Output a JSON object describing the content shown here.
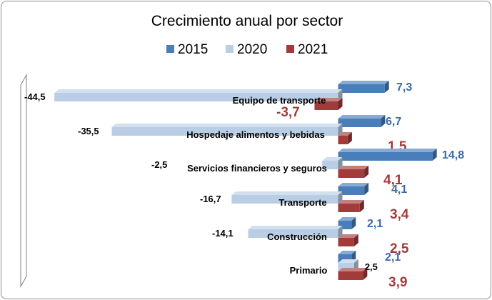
{
  "chart_data": {
    "type": "bar",
    "orientation": "horizontal",
    "title": "Crecimiento anual por sector",
    "categories": [
      "Equipo de transporte",
      "Hospedaje alimentos y bebidas",
      "Servicios financieros y seguros",
      "Transporte",
      "Construcción",
      "Primario"
    ],
    "series": [
      {
        "name": "2015",
        "color": "#4a7ebb",
        "values": [
          7.3,
          6.7,
          14.8,
          4.1,
          2.1,
          2.1
        ]
      },
      {
        "name": "2020",
        "color": "#b9cde5",
        "values": [
          -44.5,
          -35.5,
          -2.5,
          -16.7,
          -14.1,
          2.5
        ]
      },
      {
        "name": "2021",
        "color": "#a33b3b",
        "values": [
          -3.7,
          1.5,
          4.1,
          3.4,
          2.5,
          3.9
        ]
      }
    ],
    "data_labels": {
      "2015": [
        "7,3",
        "6,7",
        "14,8",
        "4,1",
        "2,1",
        "2,1"
      ],
      "2020": [
        "-44,5",
        "-35,5",
        "-2,5",
        "-16,7",
        "-14,1",
        "2,5"
      ],
      "2021": [
        "-3,7",
        "1,5",
        "4,1",
        "3,4",
        "2,5",
        "3,9"
      ]
    },
    "label_colors": {
      "2015": "#3b6aa6",
      "2021": "#a33b3b"
    },
    "xlim": [
      -50,
      18
    ],
    "legend_position": "top",
    "grid": false
  }
}
